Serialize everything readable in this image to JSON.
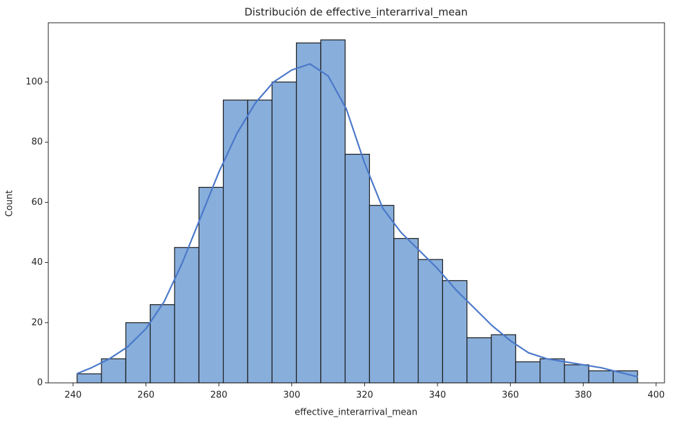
{
  "chart_data": {
    "type": "histogram",
    "title": "Distribución de effective_interarrival_mean",
    "x_label": "effective_interarrival_mean",
    "y_label": "Count",
    "bins": [
      241.1,
      247.79,
      254.47,
      261.16,
      267.85,
      274.54,
      281.22,
      287.91,
      294.6,
      301.28,
      307.97,
      314.66,
      321.34,
      328.03,
      334.72,
      341.41,
      348.09,
      354.78,
      361.47,
      368.15,
      374.84,
      381.53,
      388.21,
      394.9
    ],
    "values": [
      3,
      8,
      20,
      26,
      45,
      65,
      94,
      94,
      100,
      113,
      114,
      76,
      59,
      48,
      41,
      34,
      15,
      16,
      7,
      8,
      6,
      4,
      4
    ],
    "color": "#88aedb",
    "edge_color": "#1a1a1a",
    "kde": {
      "color": "#4a78c9",
      "x": [
        241,
        245,
        250,
        255,
        260,
        265,
        270,
        275,
        280,
        285,
        290,
        295,
        300,
        305,
        310,
        315,
        320,
        325,
        330,
        335,
        340,
        345,
        350,
        355,
        360,
        365,
        370,
        375,
        380,
        385,
        390,
        395
      ],
      "values": [
        3,
        5,
        8,
        12,
        18,
        27,
        40,
        55,
        70,
        83,
        93,
        100,
        104,
        106,
        102,
        91,
        73,
        58,
        50,
        44,
        38,
        31,
        25,
        19,
        14,
        10,
        8,
        7,
        6,
        5,
        3.5,
        2
      ]
    },
    "xlim": [
      233.2,
      402.3
    ],
    "ylim": [
      0,
      119.7
    ],
    "xticks": [
      240,
      260,
      280,
      300,
      320,
      340,
      360,
      380,
      400
    ],
    "yticks": [
      0,
      20,
      40,
      60,
      80,
      100
    ]
  }
}
